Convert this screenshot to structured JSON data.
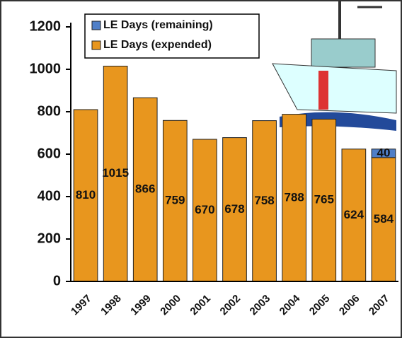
{
  "chart_data": {
    "type": "stacked-bar",
    "categories": [
      "1997",
      "1998",
      "1999",
      "2000",
      "2001",
      "2002",
      "2003",
      "2004",
      "2005",
      "2006",
      "2007"
    ],
    "series": [
      {
        "name": "LE Days (expended)",
        "color": "#e8961e",
        "values": [
          810,
          1015,
          866,
          759,
          670,
          678,
          758,
          788,
          765,
          624,
          584
        ]
      },
      {
        "name": "LE Days (remaining)",
        "color": "#4f7fc8",
        "values": [
          null,
          null,
          null,
          null,
          null,
          null,
          null,
          null,
          null,
          null,
          40
        ]
      }
    ],
    "ylim": [
      0,
      1200
    ],
    "yticks": [
      0,
      200,
      400,
      600,
      800,
      1000,
      1200
    ]
  }
}
